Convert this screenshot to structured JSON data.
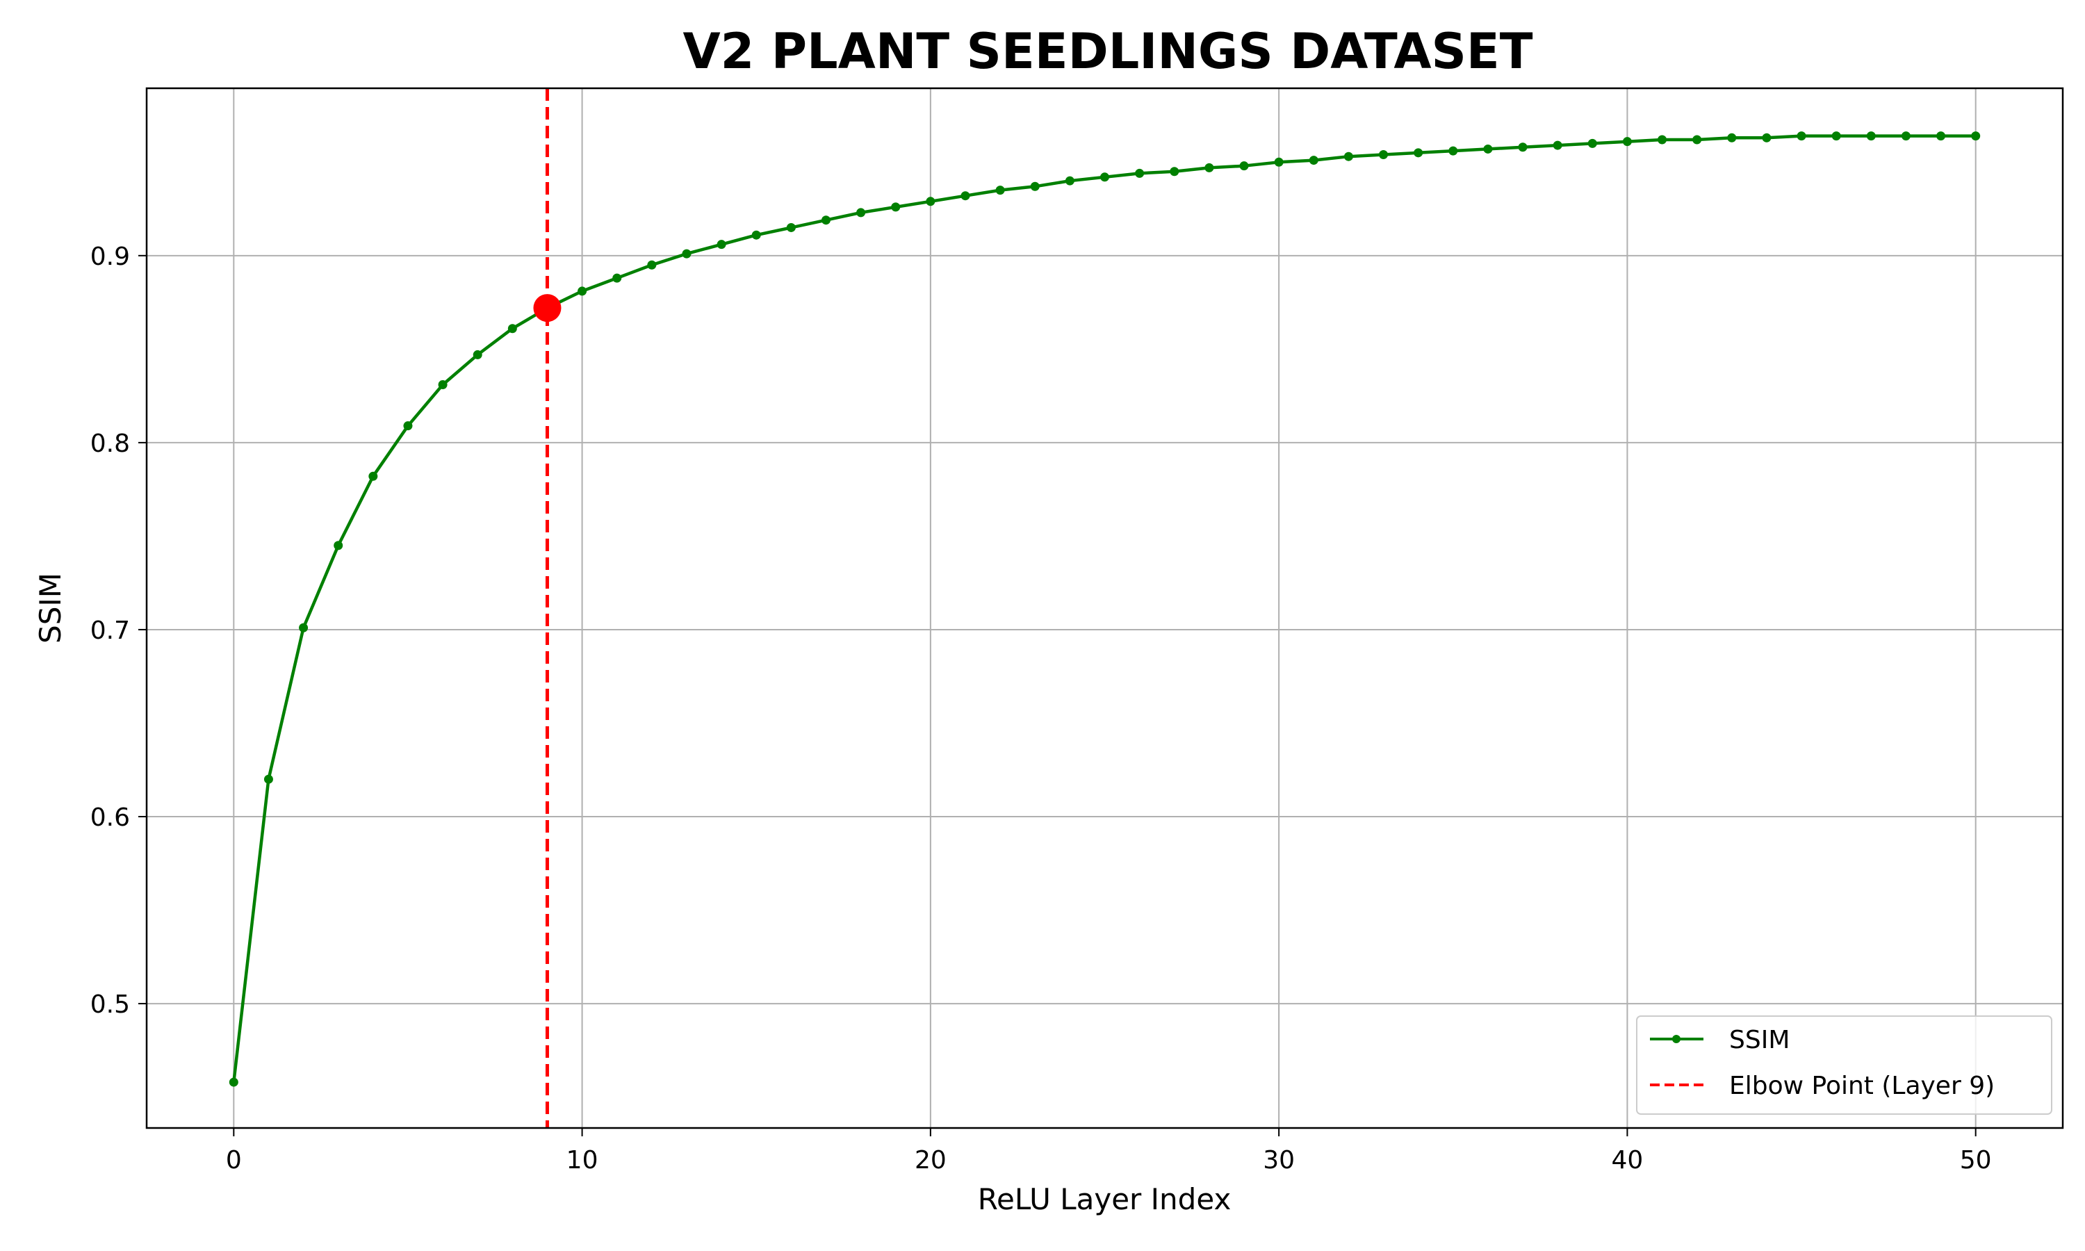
{
  "chart_data": {
    "type": "line",
    "title": "V2 PLANT SEEDLINGS DATASET",
    "xlabel": "ReLU Layer Index",
    "ylabel": "SSIM",
    "xlim": [
      -2.5,
      52.5
    ],
    "ylim": [
      0.4335,
      0.9895
    ],
    "xticks": [
      0,
      10,
      20,
      30,
      40,
      50
    ],
    "xtick_labels": [
      "0",
      "10",
      "20",
      "30",
      "40",
      "50"
    ],
    "yticks": [
      0.5,
      0.6,
      0.7,
      0.8,
      0.9
    ],
    "ytick_labels": [
      "0.5",
      "0.6",
      "0.7",
      "0.8",
      "0.9"
    ],
    "grid": true,
    "legend_position": "bottom-right",
    "series": [
      {
        "name": "SSIM",
        "color": "#008000",
        "marker": "dot",
        "x": [
          0,
          1,
          2,
          3,
          4,
          5,
          6,
          7,
          8,
          9,
          10,
          11,
          12,
          13,
          14,
          15,
          16,
          17,
          18,
          19,
          20,
          21,
          22,
          23,
          24,
          25,
          26,
          27,
          28,
          29,
          30,
          31,
          32,
          33,
          34,
          35,
          36,
          37,
          38,
          39,
          40,
          41,
          42,
          43,
          44,
          45,
          46,
          47,
          48,
          49,
          50
        ],
        "y": [
          0.458,
          0.62,
          0.701,
          0.745,
          0.782,
          0.809,
          0.831,
          0.847,
          0.861,
          0.872,
          0.881,
          0.888,
          0.895,
          0.901,
          0.906,
          0.911,
          0.915,
          0.919,
          0.923,
          0.926,
          0.929,
          0.932,
          0.935,
          0.937,
          0.94,
          0.942,
          0.944,
          0.945,
          0.947,
          0.948,
          0.95,
          0.951,
          0.953,
          0.954,
          0.955,
          0.956,
          0.957,
          0.958,
          0.959,
          0.96,
          0.961,
          0.962,
          0.962,
          0.963,
          0.963,
          0.964,
          0.964,
          0.964,
          0.964,
          0.964,
          0.964
        ]
      }
    ],
    "elbow": {
      "label": "Elbow Point (Layer 9)",
      "x": 9,
      "y": 0.872,
      "color": "#ff0000"
    }
  }
}
